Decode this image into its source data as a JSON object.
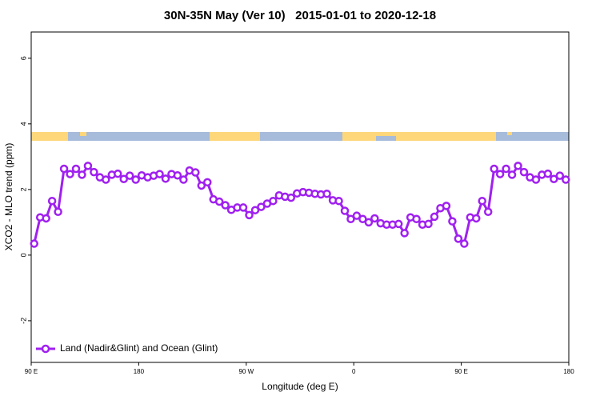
{
  "chart_data": {
    "type": "line",
    "title": "30N-35N May (Ver 10)   2015-01-01 to 2020-12-18",
    "xlabel": "Longitude (deg E)",
    "ylabel": "XCO2 - MLO trend (ppm)",
    "xlim": [
      90,
      540
    ],
    "xticks": [
      {
        "value": 90,
        "label": "90 E"
      },
      {
        "value": 180,
        "label": "180"
      },
      {
        "value": 270,
        "label": "90 W"
      },
      {
        "value": 360,
        "label": "0"
      },
      {
        "value": 450,
        "label": "90 E"
      },
      {
        "value": 540,
        "label": "180"
      }
    ],
    "ylim": [
      -3.27,
      6.8
    ],
    "yticks": [
      -2,
      0,
      2,
      4,
      6
    ],
    "legend": "bottom-left",
    "x": [
      92.5,
      97.5,
      102.5,
      107.5,
      112.5,
      117.5,
      122.5,
      127.5,
      132.5,
      137.5,
      142.5,
      147.5,
      152.5,
      157.5,
      162.5,
      167.5,
      172.5,
      177.5,
      182.5,
      187.5,
      192.5,
      197.5,
      202.5,
      207.5,
      212.5,
      217.5,
      222.5,
      227.5,
      232.5,
      237.5,
      242.5,
      247.5,
      252.5,
      257.5,
      262.5,
      267.5,
      272.5,
      277.5,
      282.5,
      287.5,
      292.5,
      297.5,
      302.5,
      307.5,
      312.5,
      317.5,
      322.5,
      327.5,
      332.5,
      337.5,
      342.5,
      347.5,
      352.5,
      357.5,
      362.5,
      367.5,
      372.5,
      377.5,
      382.5,
      387.5,
      392.5,
      397.5,
      402.5,
      407.5,
      412.5,
      417.5,
      422.5,
      427.5,
      432.5,
      437.5,
      442.5,
      447.5,
      452.5,
      457.5,
      462.5,
      467.5,
      472.5,
      477.5,
      482.5,
      487.5,
      492.5,
      497.5,
      502.5,
      507.5,
      512.5,
      517.5,
      522.5,
      527.5,
      532.5,
      537.5
    ],
    "series": [
      {
        "name": "Land (Nadir&Glint) and Ocean (Glint)",
        "color": "#a020f0",
        "values": [
          0.35,
          1.15,
          1.12,
          1.65,
          1.32,
          2.63,
          2.47,
          2.63,
          2.45,
          2.72,
          2.53,
          2.37,
          2.3,
          2.45,
          2.48,
          2.32,
          2.42,
          2.3,
          2.43,
          2.37,
          2.42,
          2.47,
          2.33,
          2.47,
          2.43,
          2.3,
          2.58,
          2.52,
          2.12,
          2.22,
          1.7,
          1.63,
          1.52,
          1.38,
          1.45,
          1.45,
          1.22,
          1.37,
          1.47,
          1.57,
          1.65,
          1.82,
          1.78,
          1.75,
          1.88,
          1.92,
          1.9,
          1.87,
          1.85,
          1.87,
          1.67,
          1.65,
          1.35,
          1.1,
          1.2,
          1.1,
          1.0,
          1.12,
          0.97,
          0.93,
          0.93,
          0.95,
          0.67,
          1.15,
          1.1,
          0.93,
          0.95,
          1.17,
          1.43,
          1.5,
          1.03,
          0.5,
          0.35,
          1.15,
          1.12,
          1.65,
          1.32,
          2.63,
          2.47,
          2.63,
          2.45,
          2.72,
          2.53,
          2.37,
          2.3,
          2.45,
          2.48,
          2.32,
          2.42,
          2.3
        ]
      }
    ]
  }
}
